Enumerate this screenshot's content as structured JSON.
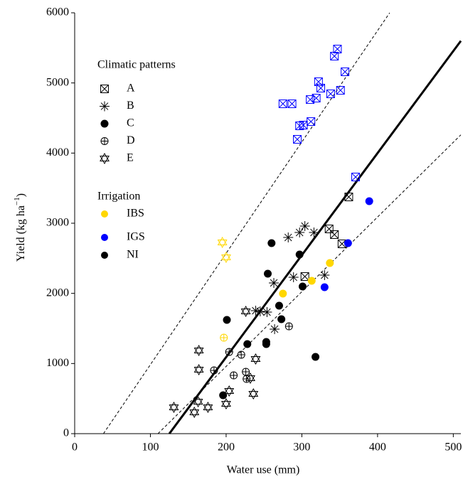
{
  "chart_data": {
    "type": "scatter",
    "x_label": "Water use (mm)",
    "y_label": {
      "text": "Yield (kg ha",
      "sup": "−1",
      "end": ")"
    },
    "xlim": [
      0,
      510
    ],
    "ylim": [
      0,
      6000
    ],
    "xticks": [
      0,
      100,
      200,
      300,
      400,
      500
    ],
    "yticks": [
      0,
      1000,
      2000,
      3000,
      4000,
      5000,
      6000
    ],
    "legend_titles": [
      "Climatic patterns",
      "Irrigation"
    ],
    "irrigation": [
      {
        "name": "IBS",
        "color": "#ffd700"
      },
      {
        "name": "IGS",
        "color": "#0000ff"
      },
      {
        "name": "NI",
        "color": "#000000"
      }
    ],
    "series": [
      {
        "name": "A",
        "marker": "boxed-x",
        "x": [
          347,
          343,
          357,
          322,
          325,
          319,
          338,
          311,
          351,
          287,
          275,
          302,
          297,
          294,
          312,
          371,
          362,
          336,
          343,
          353,
          304
        ],
        "y": [
          5483,
          5382,
          5159,
          5017,
          4926,
          4784,
          4845,
          4763,
          4895,
          4703,
          4703,
          4399,
          4389,
          4196,
          4449,
          3659,
          3375,
          2919,
          2838,
          2706,
          2240
        ],
        "irrigation": [
          "IGS",
          "IGS",
          "IGS",
          "IGS",
          "IGS",
          "IGS",
          "IGS",
          "IGS",
          "IGS",
          "IGS",
          "IGS",
          "IGS",
          "IGS",
          "IGS",
          "IGS",
          "IGS",
          "NI",
          "NI",
          "NI",
          "NI",
          "NI"
        ]
      },
      {
        "name": "B",
        "marker": "asterisk",
        "x": [
          304,
          297,
          282,
          316,
          289,
          330,
          263,
          239,
          254,
          264,
          245
        ],
        "y": [
          2959,
          2868,
          2797,
          2868,
          2230,
          2260,
          2149,
          1753,
          1733,
          1490,
          1743
        ],
        "irrigation": [
          "NI",
          "NI",
          "NI",
          "NI",
          "NI",
          "NI",
          "NI",
          "NI",
          "NI",
          "NI",
          "NI"
        ]
      },
      {
        "name": "C",
        "marker": "dot",
        "x": [
          260,
          297,
          255,
          301,
          270,
          273,
          201,
          228,
          253,
          253,
          318,
          196,
          275,
          313,
          337,
          389,
          361,
          330
        ],
        "y": [
          2716,
          2554,
          2280,
          2098,
          1824,
          1632,
          1622,
          1277,
          1307,
          1277,
          1095,
          547,
          1997,
          2179,
          2432,
          3314,
          2716,
          2088
        ],
        "irrigation": [
          "NI",
          "NI",
          "NI",
          "NI",
          "NI",
          "NI",
          "NI",
          "NI",
          "NI",
          "NI",
          "NI",
          "NI",
          "IBS",
          "IBS",
          "IBS",
          "IGS",
          "IGS",
          "IGS"
        ]
      },
      {
        "name": "D",
        "marker": "circle-plus",
        "x": [
          283,
          204,
          184,
          220,
          210,
          226,
          227,
          197
        ],
        "y": [
          1530,
          1165,
          902,
          1125,
          831,
          882,
          780,
          1368
        ],
        "irrigation": [
          "NI",
          "NI",
          "NI",
          "NI",
          "NI",
          "NI",
          "NI",
          "IBS"
        ]
      },
      {
        "name": "E",
        "marker": "star-of-david",
        "x": [
          131,
          158,
          163,
          176,
          200,
          164,
          164,
          204,
          232,
          239,
          236,
          226,
          195,
          200
        ],
        "y": [
          375,
          304,
          456,
          375,
          426,
          912,
          1186,
          608,
          790,
          1064,
          568,
          1743,
          2726,
          2513
        ],
        "irrigation": [
          "NI",
          "NI",
          "NI",
          "NI",
          "NI",
          "NI",
          "NI",
          "NI",
          "NI",
          "NI",
          "NI",
          "NI",
          "IBS",
          "IBS"
        ]
      }
    ],
    "lines": [
      {
        "style": "solid",
        "x": [
          125,
          510
        ],
        "y": [
          0,
          5600
        ]
      },
      {
        "style": "dashed",
        "x": [
          38,
          416
        ],
        "y": [
          0,
          6000
        ]
      },
      {
        "style": "dashed",
        "x": [
          110,
          510
        ],
        "y": [
          0,
          4260
        ]
      }
    ]
  }
}
